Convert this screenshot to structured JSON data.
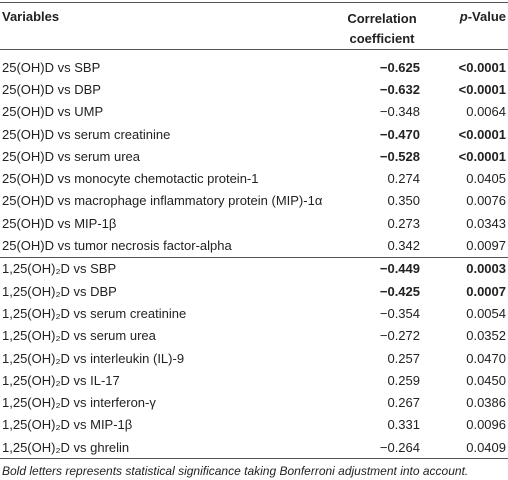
{
  "header": {
    "variables": "Variables",
    "coefficient": "Correlation coefficient",
    "p_italic": "p",
    "p_rest": "-Value"
  },
  "groups": [
    {
      "rows": [
        {
          "variable": "25(OH)D vs SBP",
          "coefficient": "−0.625",
          "p_value": "<0.0001",
          "bold": true
        },
        {
          "variable": "25(OH)D vs DBP",
          "coefficient": "−0.632",
          "p_value": "<0.0001",
          "bold": true
        },
        {
          "variable": "25(OH)D vs UMP",
          "coefficient": "−0.348",
          "p_value": "0.0064",
          "bold": false
        },
        {
          "variable": "25(OH)D vs serum creatinine",
          "coefficient": "−0.470",
          "p_value": "<0.0001",
          "bold": true
        },
        {
          "variable": "25(OH)D vs serum urea",
          "coefficient": "−0.528",
          "p_value": "<0.0001",
          "bold": true
        },
        {
          "variable": "25(OH)D vs monocyte chemotactic protein-1",
          "coefficient": "0.274",
          "p_value": "0.0405",
          "bold": false
        },
        {
          "variable": "25(OH)D vs macrophage inflammatory protein (MIP)-1α",
          "coefficient": "0.350",
          "p_value": "0.0076",
          "bold": false
        },
        {
          "variable": "25(OH)D vs MIP-1β",
          "coefficient": "0.273",
          "p_value": "0.0343",
          "bold": false
        },
        {
          "variable": "25(OH)D vs tumor necrosis factor-alpha",
          "coefficient": "0.342",
          "p_value": "0.0097",
          "bold": false
        }
      ]
    },
    {
      "rows": [
        {
          "variable": "1,25(OH)₂D vs SBP",
          "coefficient": "−0.449",
          "p_value": "0.0003",
          "bold": true
        },
        {
          "variable": "1,25(OH)₂D vs DBP",
          "coefficient": "−0.425",
          "p_value": "0.0007",
          "bold": true
        },
        {
          "variable": "1,25(OH)₂D vs serum creatinine",
          "coefficient": "−0.354",
          "p_value": "0.0054",
          "bold": false
        },
        {
          "variable": "1,25(OH)₂D vs serum urea",
          "coefficient": "−0.272",
          "p_value": "0.0352",
          "bold": false
        },
        {
          "variable": "1,25(OH)₂D vs interleukin (IL)-9",
          "coefficient": "0.257",
          "p_value": "0.0470",
          "bold": false
        },
        {
          "variable": "1,25(OH)₂D vs IL-17",
          "coefficient": "0.259",
          "p_value": "0.0450",
          "bold": false
        },
        {
          "variable": "1,25(OH)₂D vs interferon-γ",
          "coefficient": "0.267",
          "p_value": "0.0386",
          "bold": false
        },
        {
          "variable": "1,25(OH)₂D vs MIP-1β",
          "coefficient": "0.331",
          "p_value": "0.0096",
          "bold": false
        },
        {
          "variable": "1,25(OH)₂D vs ghrelin",
          "coefficient": "−0.264",
          "p_value": "0.0409",
          "bold": false
        }
      ]
    }
  ],
  "footnote": "Bold letters represents statistical significance taking Bonferroni adjustment into account."
}
